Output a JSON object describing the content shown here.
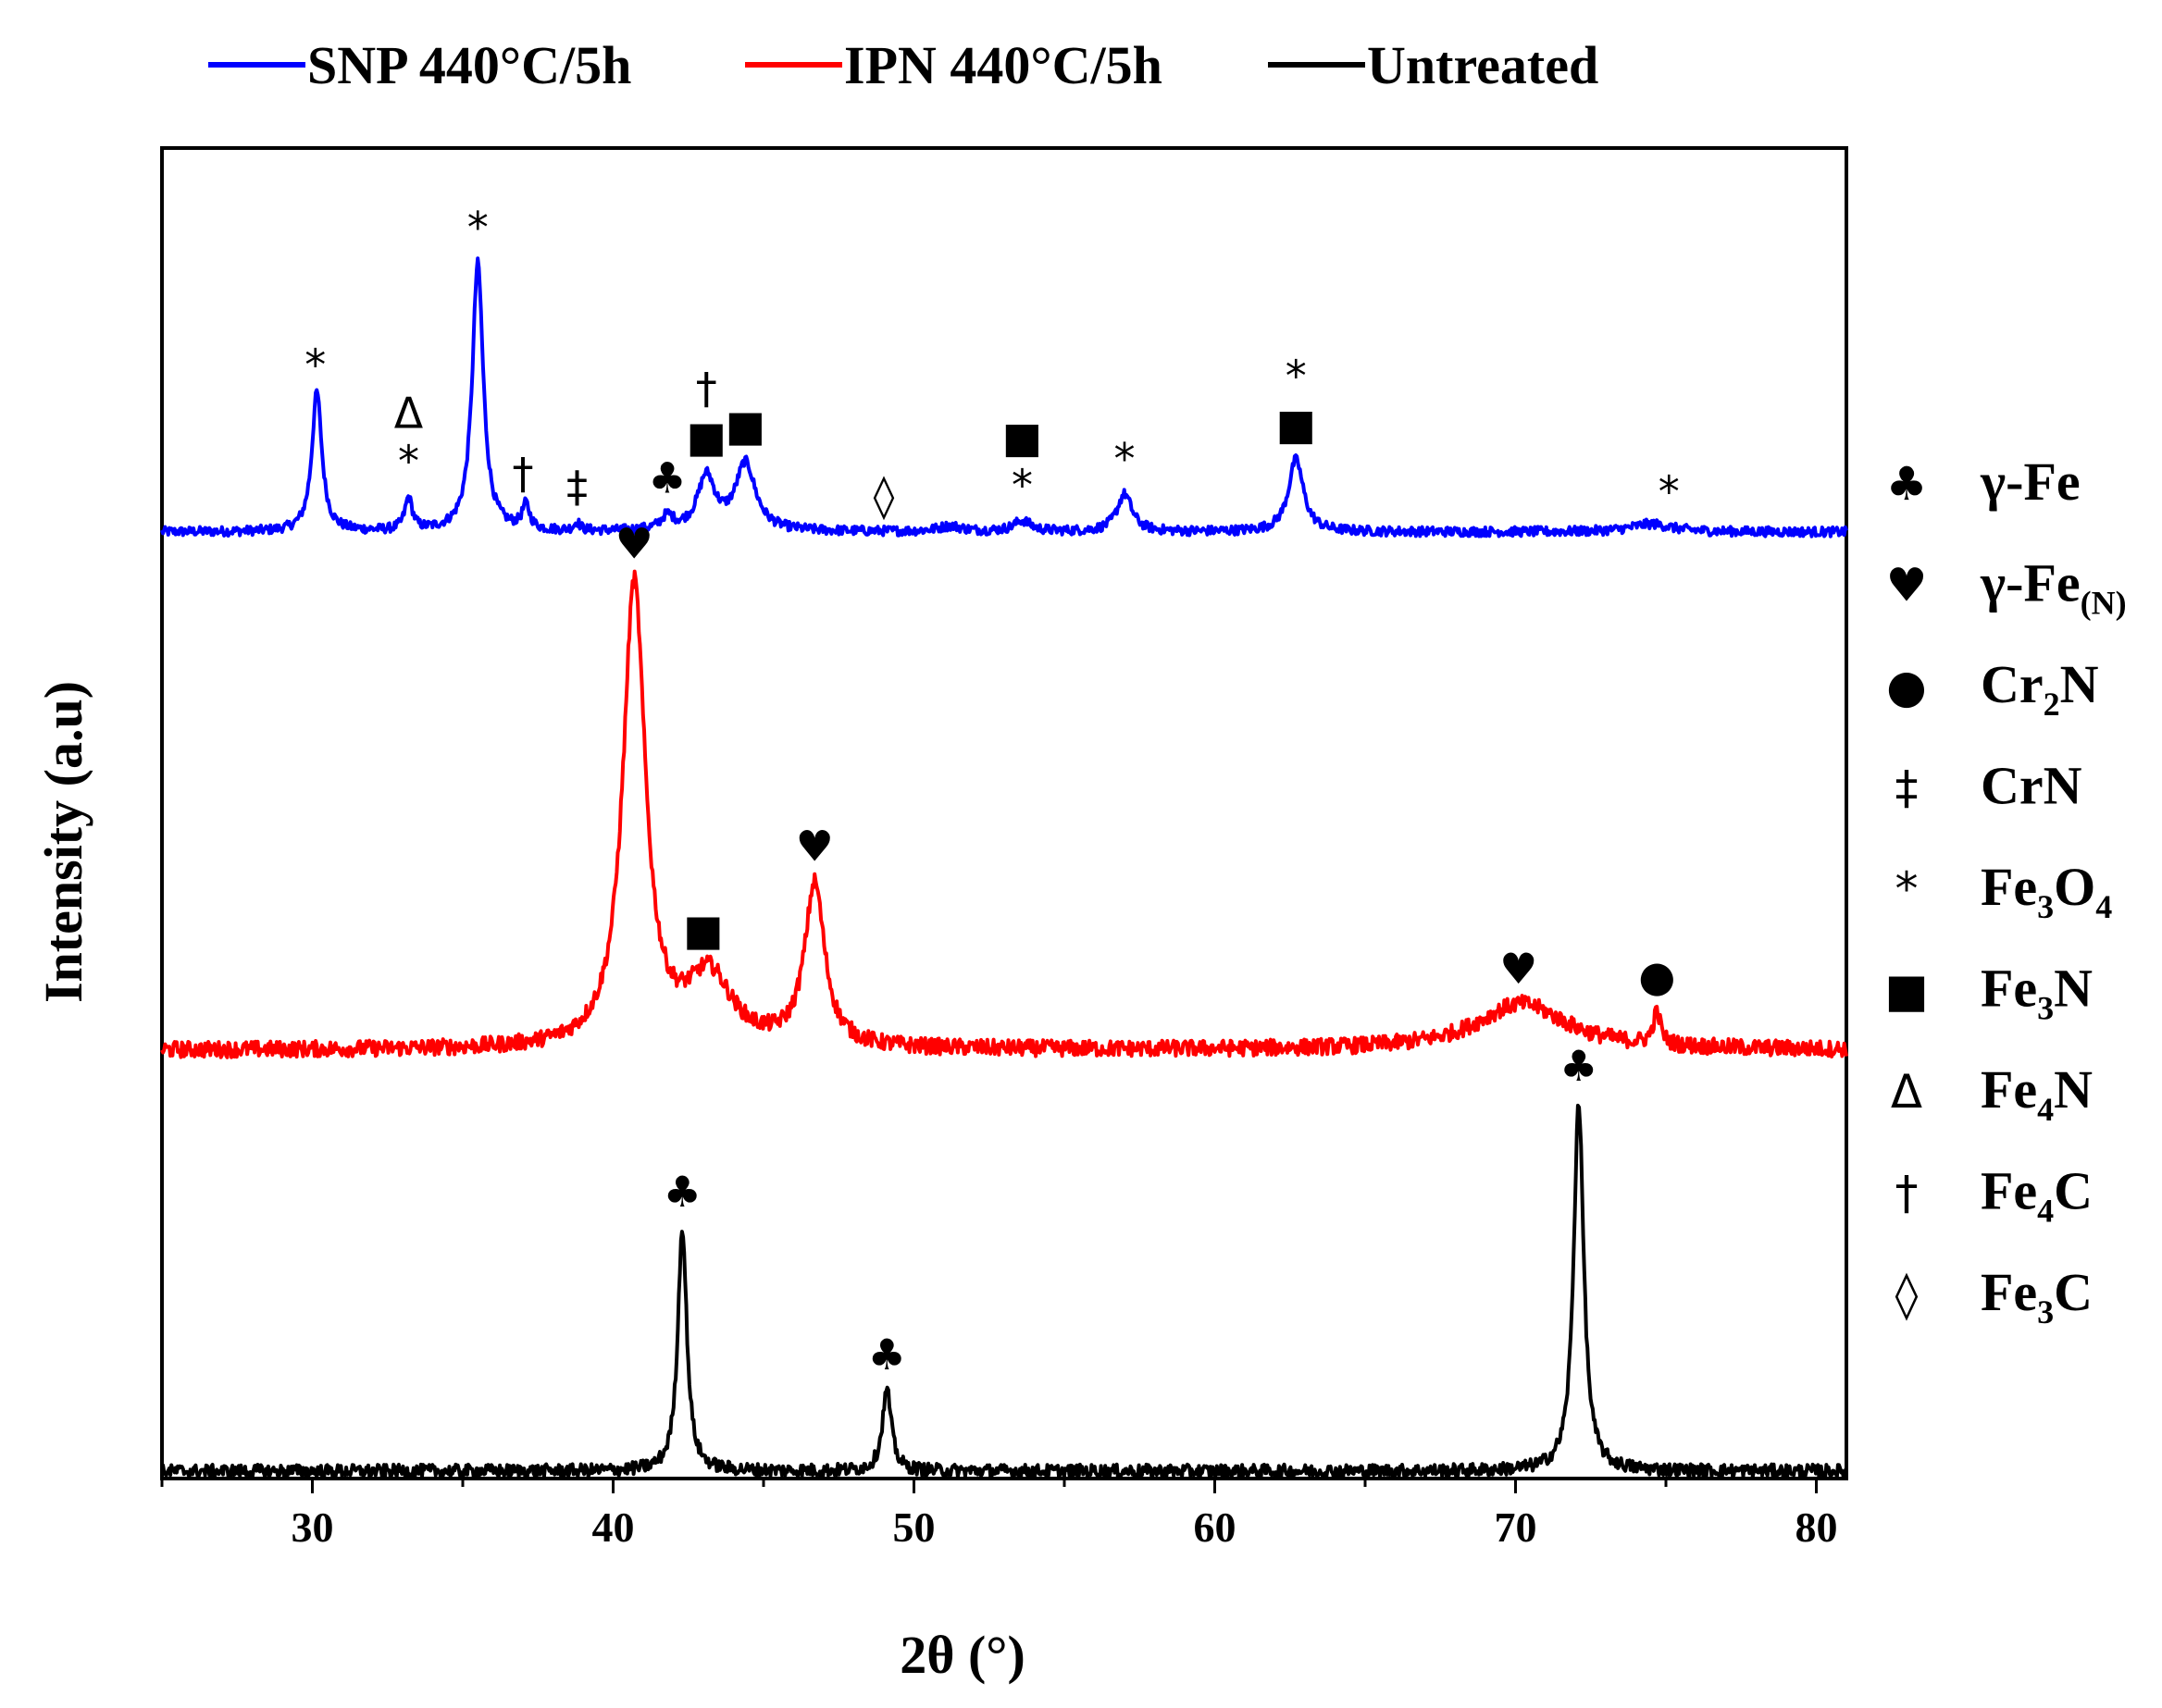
{
  "chart_data": {
    "type": "line",
    "title": "",
    "xlabel": "2θ (°)",
    "ylabel": "Intensity (a.u)",
    "xlim": [
      25,
      81
    ],
    "x_ticks": [
      30,
      40,
      50,
      60,
      70,
      80
    ],
    "y_ticks_shown": false,
    "legend_position": "top",
    "series": [
      {
        "name": "SNP 440°C/5h",
        "color": "#0000ff",
        "baseline": 0.0,
        "peaks": [
          {
            "x": 30.15,
            "h": 0.52,
            "w": 0.2
          },
          {
            "x": 33.2,
            "h": 0.12,
            "w": 0.15
          },
          {
            "x": 35.5,
            "h": 1.0,
            "w": 0.22
          },
          {
            "x": 37.1,
            "h": 0.09,
            "w": 0.15
          },
          {
            "x": 38.8,
            "h": 0.03,
            "w": 0.12
          },
          {
            "x": 41.8,
            "h": 0.05,
            "w": 0.25
          },
          {
            "x": 43.1,
            "h": 0.2,
            "w": 0.35
          },
          {
            "x": 44.4,
            "h": 0.25,
            "w": 0.4
          },
          {
            "x": 51.2,
            "h": 0.02,
            "w": 0.5
          },
          {
            "x": 53.6,
            "h": 0.04,
            "w": 0.35
          },
          {
            "x": 57.0,
            "h": 0.14,
            "w": 0.3
          },
          {
            "x": 62.7,
            "h": 0.27,
            "w": 0.3
          },
          {
            "x": 74.5,
            "h": 0.03,
            "w": 0.8
          }
        ]
      },
      {
        "name": "IPN 440°C/5h",
        "color": "#ff0000",
        "baseline": 0.0,
        "peaks": [
          {
            "x": 40.7,
            "h": 1.0,
            "w": 0.45
          },
          {
            "x": 43.2,
            "h": 0.15,
            "w": 0.9
          },
          {
            "x": 46.7,
            "h": 0.35,
            "w": 0.4
          },
          {
            "x": 70.2,
            "h": 0.1,
            "w": 1.8
          },
          {
            "x": 74.7,
            "h": 0.07,
            "w": 0.15
          }
        ]
      },
      {
        "name": "Untreated",
        "color": "#000000",
        "baseline": 0.0,
        "peaks": [
          {
            "x": 42.3,
            "h": 0.66,
            "w": 0.18
          },
          {
            "x": 49.1,
            "h": 0.22,
            "w": 0.18
          },
          {
            "x": 72.1,
            "h": 1.0,
            "w": 0.2
          }
        ]
      }
    ],
    "annotations": [
      {
        "series": "SNP 440°C/5h",
        "x": 30.1,
        "symbols": [
          "*"
        ]
      },
      {
        "series": "SNP 440°C/5h",
        "x": 33.2,
        "symbols": [
          "Δ",
          "*"
        ]
      },
      {
        "series": "SNP 440°C/5h",
        "x": 35.5,
        "symbols": [
          "*"
        ]
      },
      {
        "series": "SNP 440°C/5h",
        "x": 37.0,
        "symbols": [
          "†"
        ]
      },
      {
        "series": "SNP 440°C/5h",
        "x": 38.8,
        "symbols": [
          "‡"
        ]
      },
      {
        "series": "SNP 440°C/5h",
        "x": 41.8,
        "symbols": [
          "♣"
        ]
      },
      {
        "series": "SNP 440°C/5h",
        "x": 43.1,
        "symbols": [
          "†",
          "■"
        ]
      },
      {
        "series": "SNP 440°C/5h",
        "x": 44.4,
        "symbols": [
          "■"
        ]
      },
      {
        "series": "SNP 440°C/5h",
        "x": 49.0,
        "symbols": [
          "◊"
        ]
      },
      {
        "series": "SNP 440°C/5h",
        "x": 53.6,
        "symbols": [
          "■",
          "*"
        ]
      },
      {
        "series": "SNP 440°C/5h",
        "x": 57.0,
        "symbols": [
          "*"
        ]
      },
      {
        "series": "SNP 440°C/5h",
        "x": 62.7,
        "symbols": [
          "*",
          "■"
        ]
      },
      {
        "series": "SNP 440°C/5h",
        "x": 75.1,
        "symbols": [
          "*"
        ]
      },
      {
        "series": "IPN 440°C/5h",
        "x": 40.7,
        "symbols": [
          "♥"
        ]
      },
      {
        "series": "IPN 440°C/5h",
        "x": 43.0,
        "symbols": [
          "■"
        ]
      },
      {
        "series": "IPN 440°C/5h",
        "x": 46.7,
        "symbols": [
          "♥"
        ]
      },
      {
        "series": "IPN 440°C/5h",
        "x": 70.1,
        "symbols": [
          "♥"
        ]
      },
      {
        "series": "IPN 440°C/5h",
        "x": 74.7,
        "symbols": [
          "●"
        ]
      },
      {
        "series": "Untreated",
        "x": 42.3,
        "symbols": [
          "♣"
        ]
      },
      {
        "series": "Untreated",
        "x": 49.1,
        "symbols": [
          "♣"
        ]
      },
      {
        "series": "Untreated",
        "x": 72.1,
        "symbols": [
          "♣"
        ]
      }
    ],
    "phase_key": [
      {
        "symbol": "♣",
        "label": "γ-Fe",
        "sub": ""
      },
      {
        "symbol": "♥",
        "label": "γ-Fe",
        "sub": "(N)"
      },
      {
        "symbol": "●",
        "label": "Cr",
        "sub": "2",
        "tail": "N"
      },
      {
        "symbol": "‡",
        "label": "CrN",
        "sub": ""
      },
      {
        "symbol": "*",
        "label": "Fe",
        "sub": "3",
        "tail": "O",
        "sub2": "4"
      },
      {
        "symbol": "■",
        "label": "Fe",
        "sub": "3",
        "tail": "N"
      },
      {
        "symbol": "Δ",
        "label": "Fe",
        "sub": "4",
        "tail": "N"
      },
      {
        "symbol": "†",
        "label": "Fe",
        "sub": "4",
        "tail": "C"
      },
      {
        "symbol": "◊",
        "label": "Fe",
        "sub": "3",
        "tail": "C"
      }
    ]
  }
}
